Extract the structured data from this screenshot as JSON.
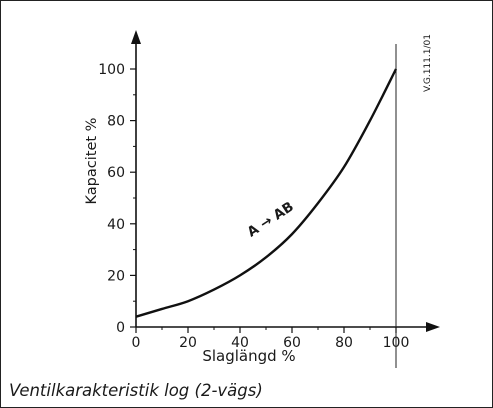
{
  "chart_data": {
    "type": "line",
    "title": "",
    "caption": "Ventilkarakteristik log (2-vägs)",
    "xlabel": "Slaglängd %",
    "ylabel": "Kapacitet %",
    "xlim": [
      0,
      100
    ],
    "ylim": [
      0,
      100
    ],
    "x_ticks": [
      0,
      20,
      40,
      60,
      80,
      100
    ],
    "x_tick_labels": [
      "0",
      "20",
      "40",
      "60",
      "80",
      "100"
    ],
    "y_ticks": [
      0,
      20,
      40,
      60,
      80,
      100
    ],
    "y_tick_labels": [
      "0",
      "20",
      "40",
      "60",
      "80",
      "100"
    ],
    "grid": false,
    "reference_line_x": 100,
    "series": [
      {
        "name": "",
        "color": "#111111",
        "x": [
          0,
          10,
          20,
          30,
          40,
          50,
          60,
          70,
          80,
          90,
          100
        ],
        "y": [
          4,
          7,
          10,
          14.5,
          20,
          27,
          36,
          48,
          62,
          80,
          100
        ]
      }
    ],
    "annotations": [
      {
        "text": "A → AB",
        "x": 58,
        "y": 38,
        "angle": -33
      }
    ],
    "side_label": "V.G.111.1/01"
  }
}
